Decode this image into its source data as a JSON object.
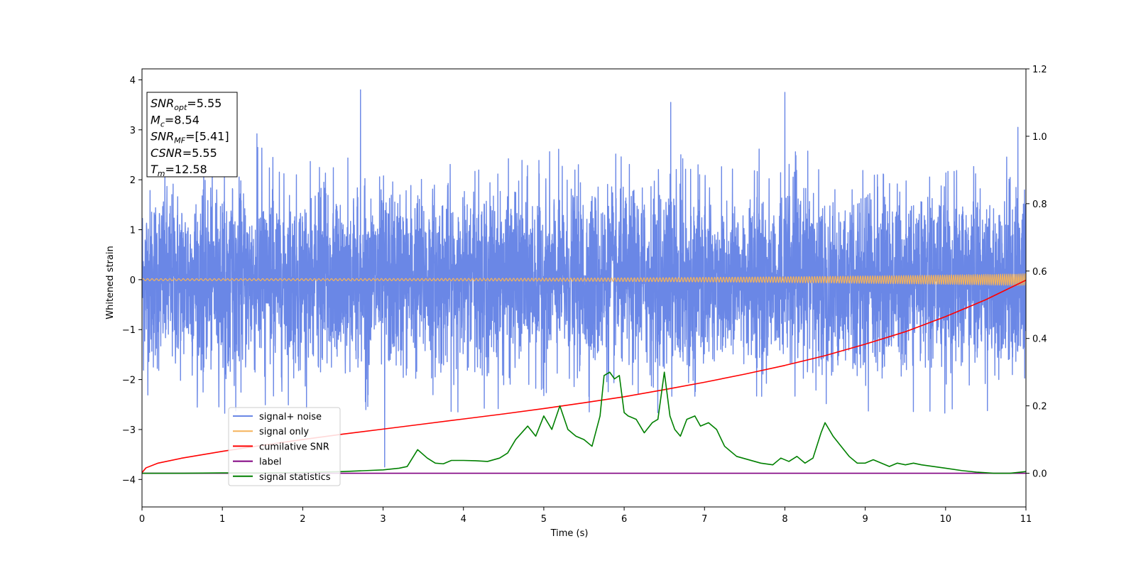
{
  "chart_data": {
    "type": "line",
    "xlabel": "Time (s)",
    "ylabel": "Whitened strain",
    "xlim": [
      0,
      11
    ],
    "ylim": [
      -4.55,
      4.22
    ],
    "y2lim": [
      -0.1,
      1.2
    ],
    "x_ticks": [
      "0",
      "1",
      "2",
      "3",
      "4",
      "5",
      "6",
      "7",
      "8",
      "9",
      "10",
      "11"
    ],
    "y_ticks": [
      "−4",
      "−3",
      "−2",
      "−1",
      "0",
      "1",
      "2",
      "3",
      "4"
    ],
    "y2_ticks": [
      "0.0",
      "0.2",
      "0.4",
      "0.6",
      "0.8",
      "1.0",
      "1.2"
    ],
    "grid": false,
    "legend_position": "lower-left",
    "info_box": [
      {
        "main": "SNR",
        "sub": "opt",
        "rest": "=5.55"
      },
      {
        "main": "M",
        "sub": "c",
        "rest": "=8.54"
      },
      {
        "main": "SNR",
        "sub": "MF",
        "rest": "=[5.41]"
      },
      {
        "main": "CSNR",
        "sub": "",
        "rest": "=5.55"
      },
      {
        "main": "T",
        "sub": "m",
        "rest": "=12.58"
      }
    ],
    "series": [
      {
        "name": "signal+ noise",
        "axis": "left",
        "color": "#6a87e6",
        "kind": "noise",
        "std": 0.88,
        "n_samples": 5600,
        "x_range": [
          0,
          11
        ],
        "peaks": [
          [
            2.72,
            3.8
          ],
          [
            8.0,
            3.75
          ],
          [
            6.58,
            3.55
          ],
          [
            10.9,
            3.05
          ],
          [
            1.43,
            2.92
          ],
          [
            3.02,
            -3.75
          ]
        ]
      },
      {
        "name": "signal only",
        "axis": "left",
        "color": "#f5b35a",
        "kind": "chirp",
        "x_range": [
          0,
          11
        ],
        "amp_start": 0.02,
        "amp_end": 0.12,
        "freq_start": 18,
        "freq_end": 40
      },
      {
        "name": "cumilative SNR",
        "axis": "right",
        "color": "#ff0000",
        "x": [
          0,
          0.05,
          0.2,
          0.5,
          1,
          1.5,
          2,
          2.5,
          3,
          3.5,
          4,
          4.5,
          5,
          5.5,
          6,
          6.5,
          7,
          7.5,
          8,
          8.5,
          9,
          9.5,
          10,
          10.5,
          11
        ],
        "values": [
          0.002,
          0.016,
          0.03,
          0.045,
          0.065,
          0.083,
          0.1,
          0.116,
          0.131,
          0.146,
          0.161,
          0.176,
          0.192,
          0.209,
          0.227,
          0.248,
          0.27,
          0.294,
          0.32,
          0.349,
          0.383,
          0.42,
          0.465,
          0.515,
          0.573
        ]
      },
      {
        "name": "label",
        "axis": "right",
        "color": "#800080",
        "x": [
          0,
          11
        ],
        "values": [
          0,
          0
        ]
      },
      {
        "name": "signal statistics",
        "axis": "right",
        "color": "#008000",
        "x": [
          0,
          0.5,
          1,
          1.5,
          2,
          2.5,
          2.8,
          3,
          3.2,
          3.3,
          3.43,
          3.55,
          3.65,
          3.75,
          3.85,
          4,
          4.15,
          4.3,
          4.45,
          4.55,
          4.65,
          4.8,
          4.9,
          5,
          5.1,
          5.2,
          5.3,
          5.4,
          5.5,
          5.6,
          5.7,
          5.75,
          5.82,
          5.88,
          5.94,
          6.0,
          6.05,
          6.15,
          6.25,
          6.35,
          6.42,
          6.5,
          6.57,
          6.63,
          6.7,
          6.78,
          6.88,
          6.95,
          7.05,
          7.15,
          7.25,
          7.4,
          7.55,
          7.7,
          7.85,
          7.95,
          8.05,
          8.15,
          8.25,
          8.35,
          8.45,
          8.5,
          8.6,
          8.7,
          8.8,
          8.9,
          9.0,
          9.1,
          9.2,
          9.3,
          9.4,
          9.5,
          9.6,
          9.7,
          9.85,
          10.0,
          10.2,
          10.4,
          10.6,
          10.8,
          11
        ],
        "values": [
          0.0,
          0.0,
          0.001,
          0.001,
          0.002,
          0.005,
          0.008,
          0.01,
          0.015,
          0.02,
          0.07,
          0.045,
          0.03,
          0.028,
          0.038,
          0.038,
          0.037,
          0.035,
          0.045,
          0.06,
          0.1,
          0.14,
          0.11,
          0.17,
          0.13,
          0.2,
          0.13,
          0.11,
          0.1,
          0.08,
          0.17,
          0.29,
          0.3,
          0.28,
          0.29,
          0.18,
          0.17,
          0.16,
          0.12,
          0.15,
          0.16,
          0.3,
          0.17,
          0.13,
          0.11,
          0.16,
          0.17,
          0.14,
          0.15,
          0.13,
          0.08,
          0.05,
          0.04,
          0.03,
          0.025,
          0.045,
          0.035,
          0.05,
          0.03,
          0.045,
          0.12,
          0.15,
          0.11,
          0.08,
          0.05,
          0.03,
          0.03,
          0.04,
          0.03,
          0.02,
          0.03,
          0.025,
          0.03,
          0.025,
          0.02,
          0.015,
          0.008,
          0.003,
          0.0,
          0.0,
          0.005
        ]
      }
    ]
  }
}
